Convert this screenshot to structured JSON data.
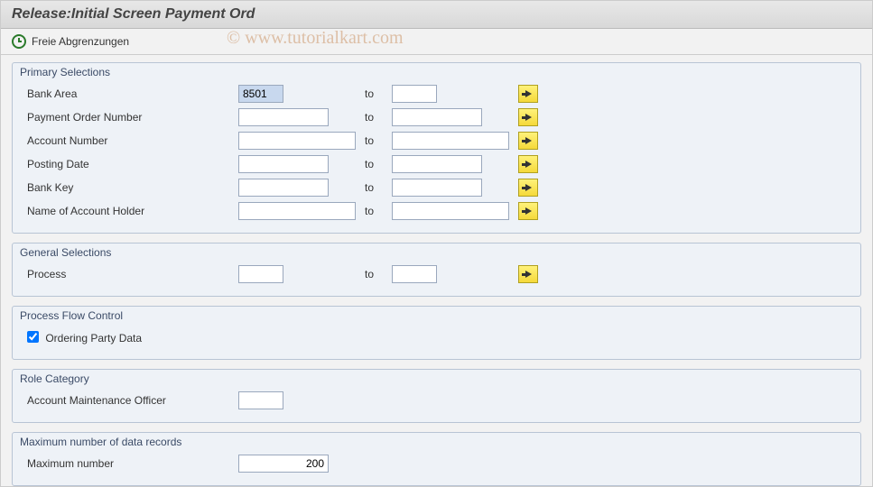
{
  "title": "Release:Initial Screen Payment Ord",
  "toolbar": {
    "freie_label": "Freie Abgrenzungen"
  },
  "watermark": "© www.tutorialkart.com",
  "groups": {
    "primary": {
      "title": "Primary Selections",
      "rows": {
        "bank_area": {
          "label": "Bank Area",
          "from": "8501",
          "to": "",
          "to_label": "to"
        },
        "pon": {
          "label": "Payment Order Number",
          "from": "",
          "to": "",
          "to_label": "to"
        },
        "acct": {
          "label": "Account Number",
          "from": "",
          "to": "",
          "to_label": "to"
        },
        "posting": {
          "label": "Posting Date",
          "from": "",
          "to": "",
          "to_label": "to"
        },
        "bankkey": {
          "label": "Bank Key",
          "from": "",
          "to": "",
          "to_label": "to"
        },
        "holder": {
          "label": "Name of Account Holder",
          "from": "",
          "to": "",
          "to_label": "to"
        }
      }
    },
    "general": {
      "title": "General Selections",
      "rows": {
        "process": {
          "label": "Process",
          "from": "",
          "to": "",
          "to_label": "to"
        }
      }
    },
    "flow": {
      "title": "Process Flow Control",
      "ordering_party_label": "Ordering Party Data",
      "ordering_party_checked": true
    },
    "role": {
      "title": "Role Category",
      "amo_label": "Account Maintenance Officer",
      "amo_value": ""
    },
    "max": {
      "title": "Maximum number of data records",
      "maxnum_label": "Maximum number",
      "maxnum_value": "200"
    }
  }
}
